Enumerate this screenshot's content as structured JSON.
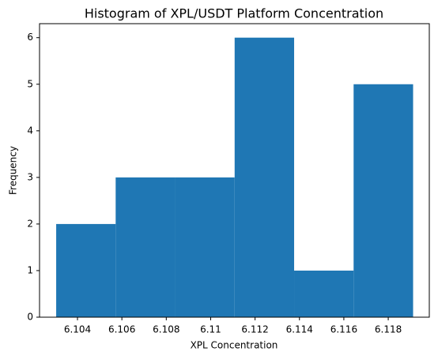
{
  "chart_data": {
    "type": "histogram",
    "title": "Histogram of XPL/USDT Platform Concentration",
    "x_label": "XPL Concentration",
    "y_label": "Frequency",
    "bins": [
      6.10304,
      6.10572,
      6.1084,
      6.11108,
      6.11376,
      6.11644,
      6.11912
    ],
    "values": [
      2,
      3,
      3,
      6,
      1,
      5
    ],
    "color": "#1f77b4",
    "xlim": [
      6.10229,
      6.11985
    ],
    "xticks": [
      6.104,
      6.106,
      6.108,
      6.11,
      6.112,
      6.114,
      6.116,
      6.118
    ],
    "ylim": [
      0,
      6.3
    ],
    "yticks": [
      0,
      1,
      2,
      3,
      4,
      5,
      6
    ]
  }
}
